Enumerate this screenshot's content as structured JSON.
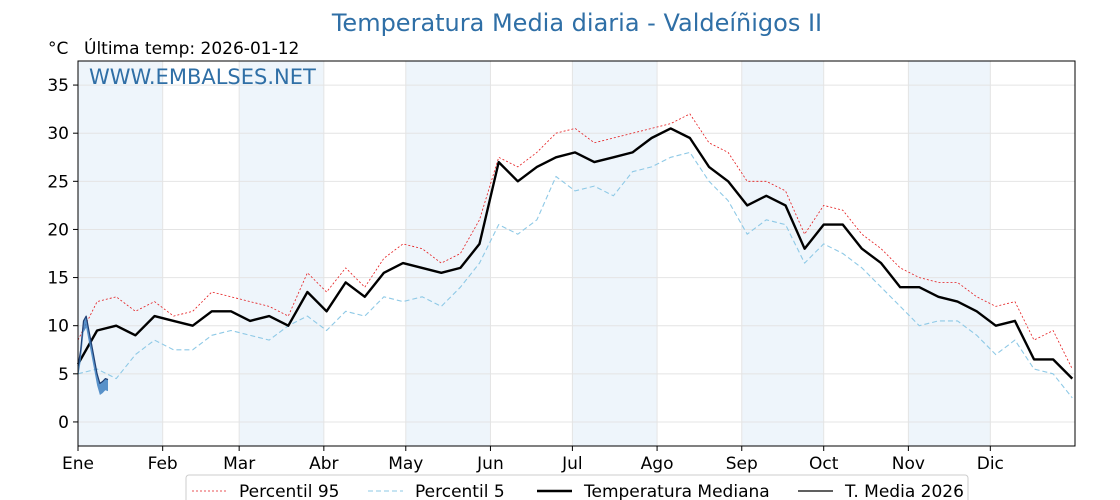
{
  "title": "Temperatura Media diaria - Valdeíñigos II",
  "unit_label": "°C",
  "last_temp_label": "Última temp: 2026-01-12",
  "watermark": "WWW.EMBALSES.NET",
  "chart_data": {
    "type": "line",
    "title": "Temperatura Media diaria - Valdeíñigos II",
    "ylabel": "°C",
    "xlabel": "",
    "x_tick_labels": [
      "Ene",
      "Feb",
      "Mar",
      "Abr",
      "May",
      "Jun",
      "Jul",
      "Ago",
      "Sep",
      "Oct",
      "Nov",
      "Dic"
    ],
    "y_ticks": [
      0,
      5,
      10,
      15,
      20,
      25,
      30,
      35
    ],
    "ylim": [
      -2.5,
      37.5
    ],
    "xlim": [
      1,
      366
    ],
    "grid": true,
    "shaded_months": [
      "Ene",
      "Mar",
      "May",
      "Jul",
      "Sep",
      "Nov"
    ],
    "legend_position": "bottom",
    "series": [
      {
        "name": "Percentil 95",
        "color": "#e41a1c",
        "style": "dotted",
        "x": [
          1,
          8,
          15,
          22,
          29,
          36,
          43,
          50,
          57,
          64,
          71,
          78,
          85,
          92,
          99,
          106,
          113,
          120,
          127,
          134,
          141,
          148,
          155,
          162,
          169,
          176,
          183,
          190,
          197,
          204,
          211,
          218,
          225,
          232,
          239,
          246,
          253,
          260,
          267,
          274,
          281,
          288,
          295,
          302,
          309,
          316,
          323,
          330,
          337,
          344,
          351,
          358,
          365
        ],
        "y": [
          8.5,
          12.5,
          13.0,
          11.5,
          12.5,
          11.0,
          11.5,
          13.5,
          13.0,
          12.5,
          12.0,
          11.0,
          15.5,
          13.5,
          16.0,
          14.0,
          17.0,
          18.5,
          18.0,
          16.5,
          17.5,
          21.0,
          27.5,
          26.5,
          28.0,
          30.0,
          30.5,
          29.0,
          29.5,
          30.0,
          30.5,
          31.0,
          32.0,
          29.0,
          28.0,
          25.0,
          25.0,
          24.0,
          19.5,
          22.5,
          22.0,
          19.5,
          18.0,
          16.0,
          15.0,
          14.5,
          14.5,
          13.0,
          12.0,
          12.5,
          8.5,
          9.5,
          5.5
        ]
      },
      {
        "name": "Percentil 5",
        "color": "#8ec9e6",
        "style": "dashed",
        "x": [
          1,
          8,
          15,
          22,
          29,
          36,
          43,
          50,
          57,
          64,
          71,
          78,
          85,
          92,
          99,
          106,
          113,
          120,
          127,
          134,
          141,
          148,
          155,
          162,
          169,
          176,
          183,
          190,
          197,
          204,
          211,
          218,
          225,
          232,
          239,
          246,
          253,
          260,
          267,
          274,
          281,
          288,
          295,
          302,
          309,
          316,
          323,
          330,
          337,
          344,
          351,
          358,
          365
        ],
        "y": [
          5.0,
          5.5,
          4.5,
          7.0,
          8.5,
          7.5,
          7.5,
          9.0,
          9.5,
          9.0,
          8.5,
          10.0,
          11.0,
          9.5,
          11.5,
          11.0,
          13.0,
          12.5,
          13.0,
          12.0,
          14.0,
          16.5,
          20.5,
          19.5,
          21.0,
          25.5,
          24.0,
          24.5,
          23.5,
          26.0,
          26.5,
          27.5,
          28.0,
          25.0,
          23.0,
          19.5,
          21.0,
          20.5,
          16.5,
          18.5,
          17.5,
          16.0,
          14.0,
          12.0,
          10.0,
          10.5,
          10.5,
          9.0,
          7.0,
          8.5,
          5.5,
          5.0,
          2.5
        ]
      },
      {
        "name": "Temperatura Mediana",
        "color": "#000000",
        "style": "solid-bold",
        "x": [
          1,
          8,
          15,
          22,
          29,
          36,
          43,
          50,
          57,
          64,
          71,
          78,
          85,
          92,
          99,
          106,
          113,
          120,
          127,
          134,
          141,
          148,
          155,
          162,
          169,
          176,
          183,
          190,
          197,
          204,
          211,
          218,
          225,
          232,
          239,
          246,
          253,
          260,
          267,
          274,
          281,
          288,
          295,
          302,
          309,
          316,
          323,
          330,
          337,
          344,
          351,
          358,
          365
        ],
        "y": [
          6.0,
          9.5,
          10.0,
          9.0,
          11.0,
          10.5,
          10.0,
          11.5,
          11.5,
          10.5,
          11.0,
          10.0,
          13.5,
          11.5,
          14.5,
          13.0,
          15.5,
          16.5,
          16.0,
          15.5,
          16.0,
          18.5,
          27.0,
          25.0,
          26.5,
          27.5,
          28.0,
          27.0,
          27.5,
          28.0,
          29.5,
          30.5,
          29.5,
          26.5,
          25.0,
          22.5,
          23.5,
          22.5,
          18.0,
          20.5,
          20.5,
          18.0,
          16.5,
          14.0,
          14.0,
          13.0,
          12.5,
          11.5,
          10.0,
          10.5,
          6.5,
          6.5,
          4.5
        ]
      },
      {
        "name": "T. Media 2026",
        "color": "#1f3f73",
        "style": "solid",
        "x": [
          1,
          2,
          3,
          4,
          5,
          6,
          7,
          8,
          9,
          10,
          11,
          12
        ],
        "y": [
          5.8,
          7.5,
          10.5,
          11.0,
          9.5,
          8.0,
          6.5,
          5.0,
          4.0,
          4.2,
          4.5,
          4.4
        ]
      }
    ]
  }
}
